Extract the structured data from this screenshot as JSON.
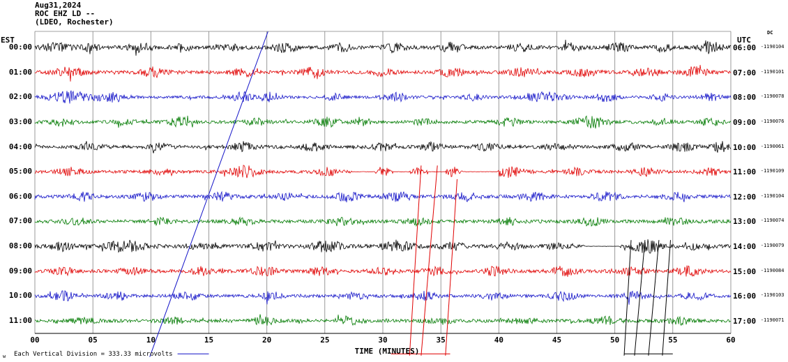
{
  "header": {
    "date": "Aug31,2024",
    "station_line": "ROC EHZ LD --",
    "network_line": "(LDEO, Rochester)",
    "dc_label": "DC"
  },
  "axes": {
    "left_tz": "EST",
    "right_tz": "UTC",
    "x_title": "TIME (MINUTES)",
    "x_ticks": [
      "00",
      "05",
      "10",
      "15",
      "20",
      "25",
      "30",
      "35",
      "40",
      "45",
      "50",
      "55",
      "60"
    ],
    "footer_scale": "Each Vertical Division =  333.33 microvolts",
    "scale_mark": "w"
  },
  "chart_data": {
    "type": "line",
    "subtype": "helicorder-seismogram",
    "x_range_minutes": [
      0,
      60
    ],
    "x_tick_interval_minutes": 5,
    "vertical_division_microvolts": 333.33,
    "rows": [
      {
        "est": "00:00",
        "utc": "06:00",
        "offset": "-1190104",
        "color": "#000000",
        "seed": 1,
        "base": 2.5,
        "bursts": [
          [
            0.03,
            0.015,
            5
          ],
          [
            0.08,
            0.01,
            4
          ],
          [
            0.15,
            0.012,
            6
          ],
          [
            0.21,
            0.008,
            5
          ],
          [
            0.28,
            0.01,
            4
          ],
          [
            0.36,
            0.012,
            6
          ],
          [
            0.44,
            0.01,
            5
          ],
          [
            0.52,
            0.012,
            5
          ],
          [
            0.6,
            0.012,
            6
          ],
          [
            0.7,
            0.012,
            5
          ],
          [
            0.77,
            0.01,
            5
          ],
          [
            0.84,
            0.012,
            6
          ],
          [
            0.9,
            0.01,
            5
          ],
          [
            0.97,
            0.012,
            7
          ]
        ],
        "gaps": []
      },
      {
        "est": "01:00",
        "utc": "07:00",
        "offset": "-1190101",
        "color": "#e00000",
        "seed": 2,
        "base": 2.5,
        "bursts": [
          [
            0.05,
            0.015,
            6
          ],
          [
            0.17,
            0.012,
            6
          ],
          [
            0.3,
            0.012,
            5
          ],
          [
            0.4,
            0.012,
            6
          ],
          [
            0.5,
            0.01,
            4
          ],
          [
            0.6,
            0.012,
            5
          ],
          [
            0.7,
            0.012,
            5
          ],
          [
            0.79,
            0.012,
            6
          ],
          [
            0.88,
            0.012,
            5
          ],
          [
            0.95,
            0.012,
            6
          ]
        ],
        "gaps": []
      },
      {
        "est": "02:00",
        "utc": "08:00",
        "offset": "-1190078",
        "color": "#1414c8",
        "seed": 3,
        "base": 2.0,
        "bursts": [
          [
            0.05,
            0.02,
            8
          ],
          [
            0.11,
            0.015,
            6
          ],
          [
            0.3,
            0.01,
            7
          ],
          [
            0.34,
            0.008,
            6
          ],
          [
            0.43,
            0.01,
            4
          ],
          [
            0.52,
            0.012,
            5
          ],
          [
            0.63,
            0.01,
            4
          ],
          [
            0.73,
            0.02,
            7
          ],
          [
            0.82,
            0.012,
            5
          ],
          [
            0.9,
            0.01,
            4
          ],
          [
            0.97,
            0.01,
            5
          ]
        ],
        "gaps": []
      },
      {
        "est": "03:00",
        "utc": "09:00",
        "offset": "-1190076",
        "color": "#007a00",
        "seed": 4,
        "base": 2.2,
        "bursts": [
          [
            0.04,
            0.012,
            5
          ],
          [
            0.13,
            0.01,
            4
          ],
          [
            0.21,
            0.012,
            6
          ],
          [
            0.32,
            0.01,
            5
          ],
          [
            0.42,
            0.012,
            6
          ],
          [
            0.47,
            0.008,
            6
          ],
          [
            0.56,
            0.01,
            4
          ],
          [
            0.68,
            0.012,
            5
          ],
          [
            0.8,
            0.015,
            8
          ],
          [
            0.9,
            0.01,
            4
          ],
          [
            0.97,
            0.01,
            5
          ]
        ],
        "gaps": []
      },
      {
        "est": "04:00",
        "utc": "10:00",
        "offset": "-1190061",
        "color": "#000000",
        "seed": 5,
        "base": 2.4,
        "bursts": [
          [
            0.08,
            0.012,
            4
          ],
          [
            0.18,
            0.01,
            4
          ],
          [
            0.3,
            0.012,
            6
          ],
          [
            0.4,
            0.012,
            5
          ],
          [
            0.5,
            0.012,
            4
          ],
          [
            0.57,
            0.01,
            5
          ],
          [
            0.65,
            0.012,
            4
          ],
          [
            0.75,
            0.012,
            4
          ],
          [
            0.85,
            0.012,
            5
          ],
          [
            0.93,
            0.012,
            5
          ],
          [
            0.985,
            0.008,
            7
          ]
        ],
        "gaps": []
      },
      {
        "est": "05:00",
        "utc": "11:00",
        "offset": "-1190109",
        "color": "#e00000",
        "seed": 6,
        "base": 2.2,
        "bursts": [
          [
            0.05,
            0.012,
            5
          ],
          [
            0.18,
            0.01,
            4
          ],
          [
            0.3,
            0.015,
            8
          ],
          [
            0.42,
            0.01,
            5
          ],
          [
            0.5,
            0.006,
            6
          ],
          [
            0.55,
            0.005,
            5
          ],
          [
            0.6,
            0.005,
            6
          ],
          [
            0.68,
            0.015,
            7
          ],
          [
            0.78,
            0.01,
            5
          ],
          [
            0.88,
            0.012,
            5
          ],
          [
            0.97,
            0.01,
            5
          ]
        ],
        "gaps": [
          [
            0.455,
            0.488
          ],
          [
            0.515,
            0.538
          ],
          [
            0.565,
            0.588
          ],
          [
            0.615,
            0.665
          ]
        ]
      },
      {
        "est": "06:00",
        "utc": "12:00",
        "offset": "-1190104",
        "color": "#1414c8",
        "seed": 7,
        "base": 2.4,
        "bursts": [
          [
            0.07,
            0.012,
            5
          ],
          [
            0.16,
            0.012,
            5
          ],
          [
            0.27,
            0.012,
            5
          ],
          [
            0.36,
            0.01,
            4
          ],
          [
            0.45,
            0.012,
            6
          ],
          [
            0.52,
            0.012,
            7
          ],
          [
            0.62,
            0.012,
            5
          ],
          [
            0.72,
            0.012,
            5
          ],
          [
            0.82,
            0.012,
            6
          ],
          [
            0.92,
            0.012,
            5
          ]
        ],
        "gaps": []
      },
      {
        "est": "07:00",
        "utc": "13:00",
        "offset": "-1190074",
        "color": "#007a00",
        "seed": 8,
        "base": 2.4,
        "bursts": [
          [
            0.06,
            0.012,
            4
          ],
          [
            0.18,
            0.01,
            4
          ],
          [
            0.3,
            0.012,
            4
          ],
          [
            0.44,
            0.012,
            5
          ],
          [
            0.55,
            0.012,
            4
          ],
          [
            0.68,
            0.012,
            4
          ],
          [
            0.8,
            0.012,
            5
          ],
          [
            0.92,
            0.012,
            4
          ]
        ],
        "gaps": []
      },
      {
        "est": "08:00",
        "utc": "14:00",
        "offset": "-1190079",
        "color": "#000000",
        "seed": 9,
        "base": 2.6,
        "bursts": [
          [
            0.04,
            0.012,
            5
          ],
          [
            0.13,
            0.02,
            7
          ],
          [
            0.24,
            0.012,
            5
          ],
          [
            0.33,
            0.012,
            5
          ],
          [
            0.42,
            0.015,
            7
          ],
          [
            0.52,
            0.015,
            7
          ],
          [
            0.6,
            0.012,
            5
          ],
          [
            0.68,
            0.012,
            4
          ],
          [
            0.75,
            0.01,
            4
          ],
          [
            0.88,
            0.015,
            8
          ],
          [
            0.95,
            0.01,
            4
          ]
        ],
        "gaps": [
          [
            0.79,
            0.84
          ]
        ]
      },
      {
        "est": "09:00",
        "utc": "15:00",
        "offset": "-1190084",
        "color": "#e00000",
        "seed": 10,
        "base": 2.4,
        "bursts": [
          [
            0.04,
            0.012,
            5
          ],
          [
            0.14,
            0.012,
            5
          ],
          [
            0.24,
            0.012,
            5
          ],
          [
            0.33,
            0.012,
            6
          ],
          [
            0.41,
            0.01,
            6
          ],
          [
            0.5,
            0.012,
            4
          ],
          [
            0.58,
            0.012,
            5
          ],
          [
            0.66,
            0.012,
            5
          ],
          [
            0.76,
            0.012,
            6
          ],
          [
            0.86,
            0.012,
            5
          ],
          [
            0.94,
            0.012,
            6
          ]
        ],
        "gaps": []
      },
      {
        "est": "10:00",
        "utc": "16:00",
        "offset": "-1190103",
        "color": "#1414c8",
        "seed": 11,
        "base": 2.2,
        "bursts": [
          [
            0.04,
            0.012,
            6
          ],
          [
            0.12,
            0.012,
            5
          ],
          [
            0.22,
            0.012,
            5
          ],
          [
            0.34,
            0.012,
            5
          ],
          [
            0.46,
            0.01,
            4
          ],
          [
            0.56,
            0.012,
            5
          ],
          [
            0.66,
            0.012,
            5
          ],
          [
            0.76,
            0.012,
            6
          ],
          [
            0.86,
            0.012,
            5
          ],
          [
            0.95,
            0.012,
            5
          ]
        ],
        "gaps": []
      },
      {
        "est": "11:00",
        "utc": "17:00",
        "offset": "-1190071",
        "color": "#007a00",
        "seed": 12,
        "base": 2.4,
        "bursts": [
          [
            0.07,
            0.012,
            4
          ],
          [
            0.2,
            0.012,
            4
          ],
          [
            0.33,
            0.012,
            5
          ],
          [
            0.45,
            0.012,
            5
          ],
          [
            0.58,
            0.012,
            4
          ],
          [
            0.7,
            0.012,
            4
          ],
          [
            0.82,
            0.012,
            5
          ],
          [
            0.93,
            0.012,
            4
          ]
        ],
        "gaps": []
      }
    ],
    "event_lines_units": {
      "x": "minutes",
      "r": "trace row index (0 = centerline of first trace)"
    },
    "event_lines": [
      {
        "color": "#1414c8",
        "x1": 20.1,
        "r1": -0.64,
        "x2": 9.9,
        "r2": 12.45
      },
      {
        "color": "#e00000",
        "x1": 33.3,
        "r1": 4.75,
        "x2": 32.3,
        "r2": 12.4
      },
      {
        "color": "#e00000",
        "x1": 34.7,
        "r1": 4.75,
        "x2": 33.3,
        "r2": 12.4
      },
      {
        "color": "#e00000",
        "x1": 36.4,
        "r1": 5.3,
        "x2": 35.4,
        "r2": 12.4
      },
      {
        "color": "#000000",
        "x1": 51.4,
        "r1": 7.75,
        "x2": 50.8,
        "r2": 12.4
      },
      {
        "color": "#000000",
        "x1": 52.6,
        "r1": 7.75,
        "x2": 51.7,
        "r2": 12.4
      },
      {
        "color": "#000000",
        "x1": 53.8,
        "r1": 7.75,
        "x2": 52.9,
        "r2": 12.4
      },
      {
        "color": "#000000",
        "x1": 54.8,
        "r1": 7.75,
        "x2": 54.1,
        "r2": 12.4
      },
      {
        "color": "#1414c8",
        "x1": 12.3,
        "r1": 12.33,
        "x2": 15.0,
        "r2": 12.33
      },
      {
        "color": "#e00000",
        "x1": 30.7,
        "r1": 12.33,
        "x2": 35.8,
        "r2": 12.33
      },
      {
        "color": "#000000",
        "x1": 50.8,
        "r1": 12.33,
        "x2": 55.0,
        "r2": 12.33
      }
    ]
  }
}
